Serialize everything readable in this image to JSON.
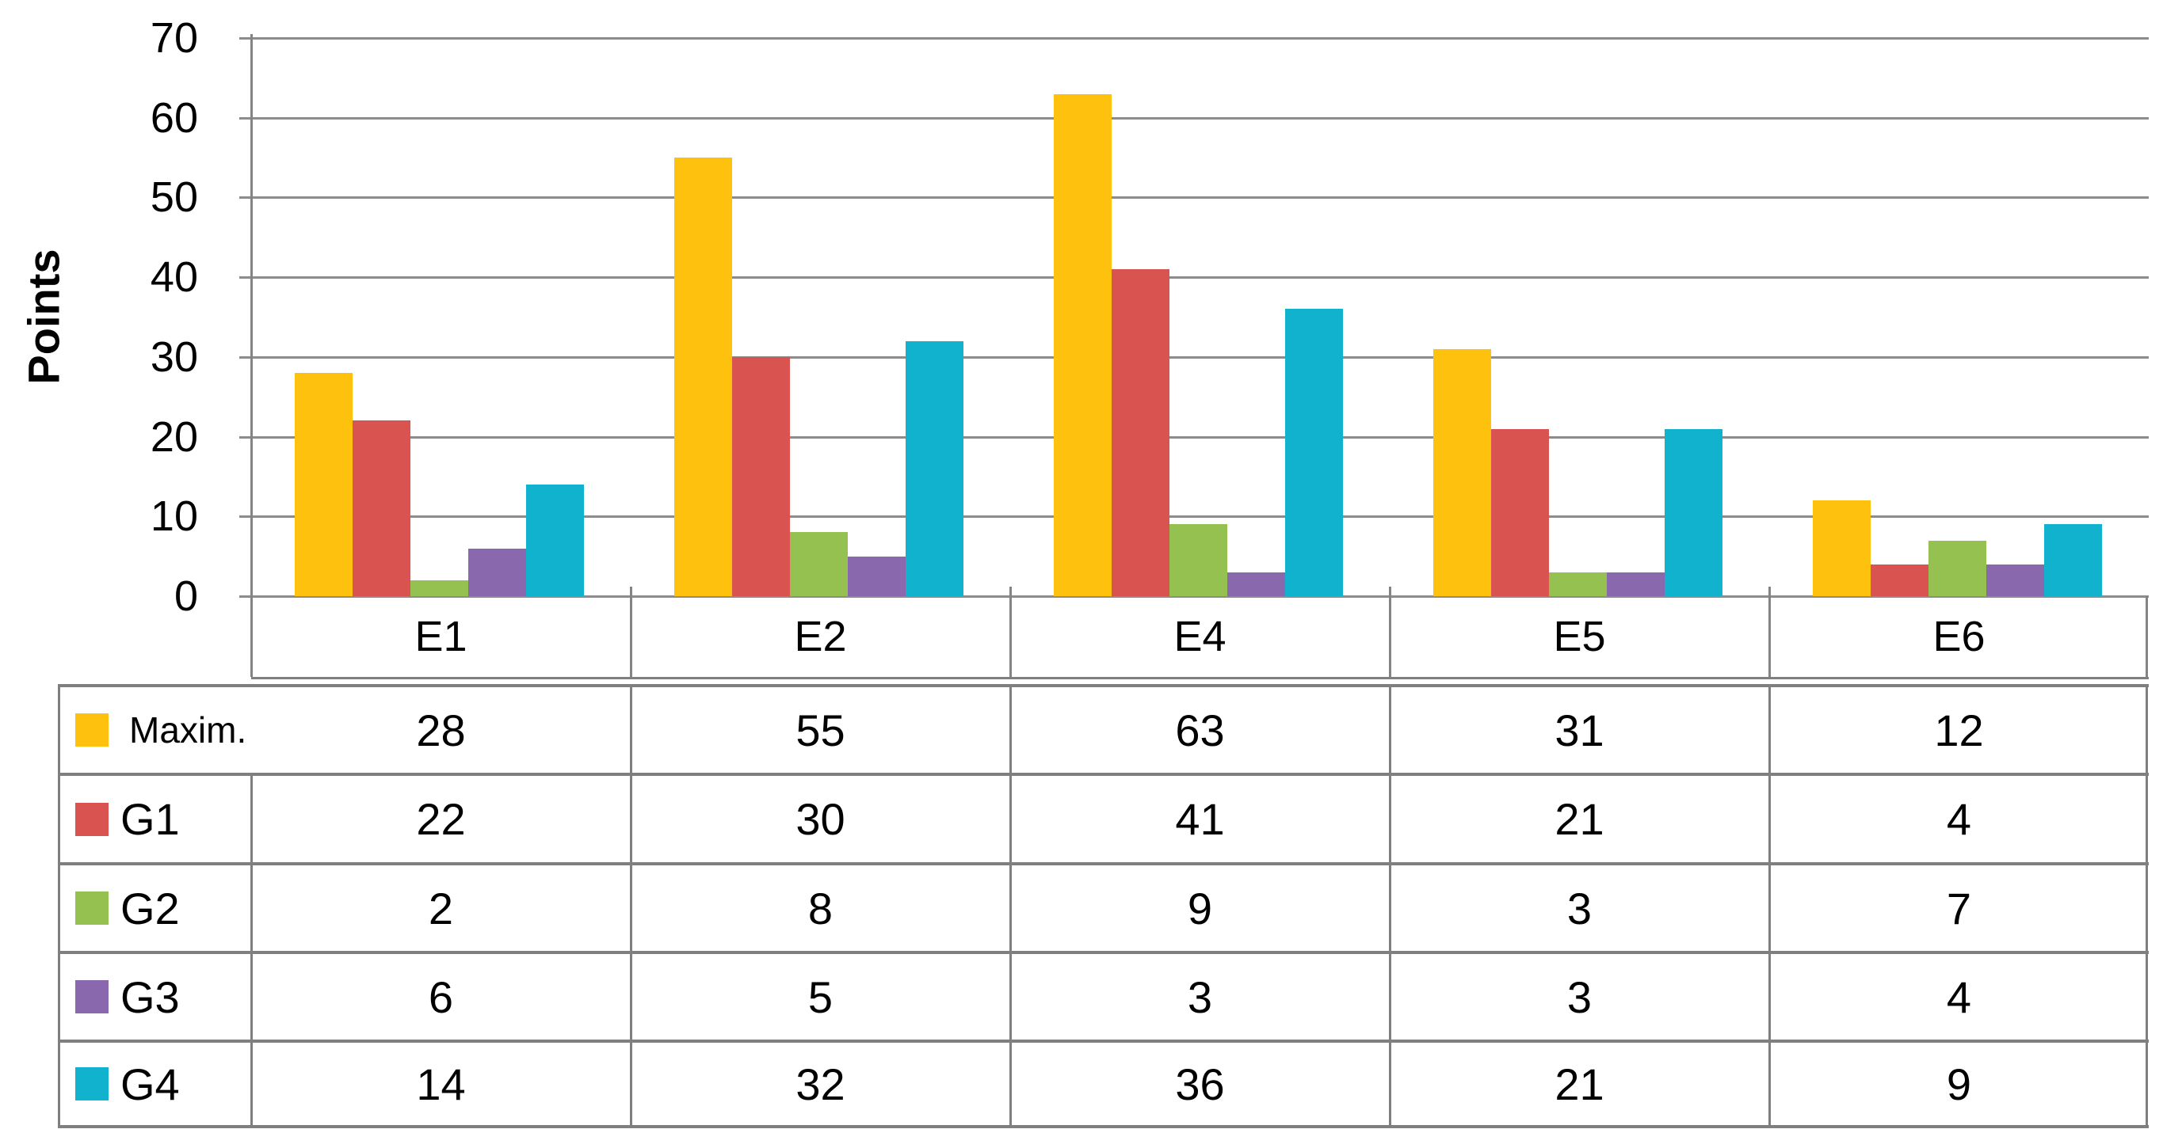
{
  "chart_data": {
    "type": "bar",
    "title": "",
    "ylabel": "Points",
    "xlabel": "",
    "categories": [
      "E1",
      "E2",
      "E4",
      "E5",
      "E6"
    ],
    "series": [
      {
        "name": "Maxim.",
        "color": "#FEC20E",
        "values": [
          28,
          55,
          63,
          31,
          12
        ]
      },
      {
        "name": "G1",
        "color": "#D95450",
        "values": [
          22,
          30,
          41,
          21,
          4
        ]
      },
      {
        "name": "G2",
        "color": "#95C151",
        "values": [
          2,
          8,
          9,
          3,
          7
        ]
      },
      {
        "name": "G3",
        "color": "#8968AE",
        "values": [
          6,
          5,
          3,
          3,
          4
        ]
      },
      {
        "name": "G4",
        "color": "#10B2CE",
        "values": [
          14,
          32,
          36,
          21,
          9
        ]
      }
    ],
    "ylim": [
      0,
      70
    ],
    "yticks": [
      0,
      10,
      20,
      30,
      40,
      50,
      60,
      70
    ],
    "grid": true,
    "gridline_color": "#8C8C8C",
    "table_border_color": "#7F7F7F",
    "legend_position": "table-left-column"
  }
}
